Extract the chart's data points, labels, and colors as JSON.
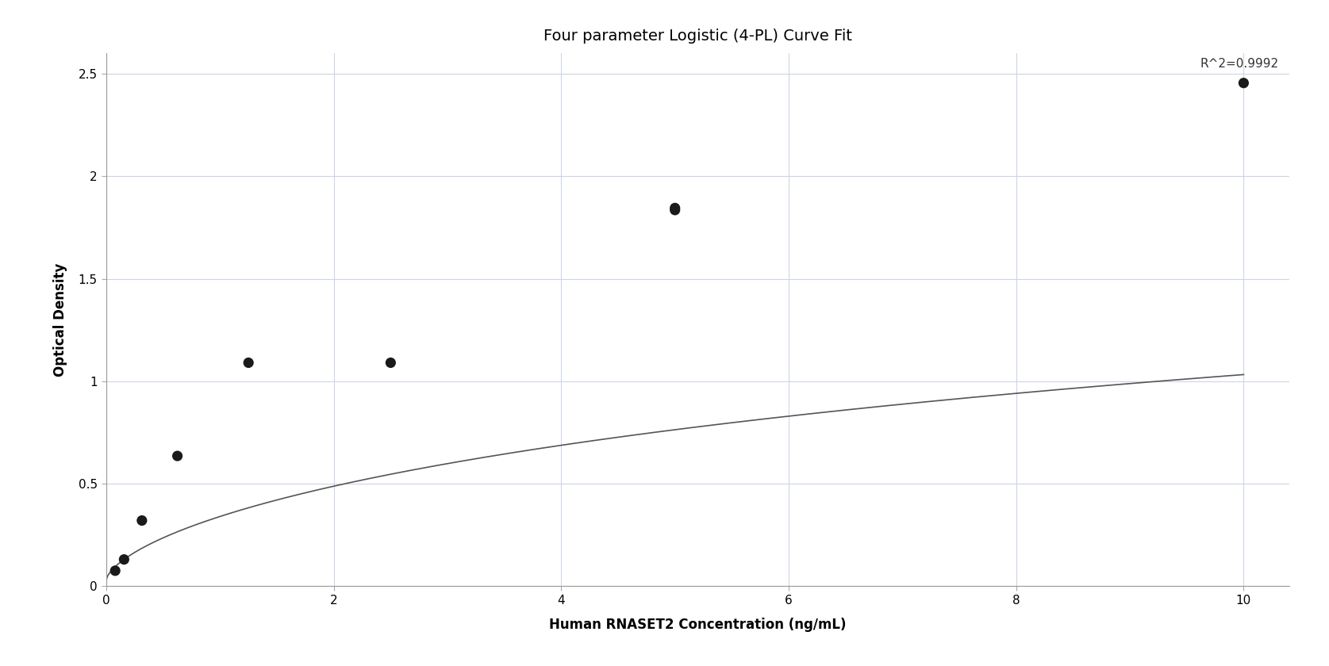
{
  "title": "Four parameter Logistic (4-PL) Curve Fit",
  "xlabel": "Human RNASET2 Concentration (ng/mL)",
  "ylabel": "Optical Density",
  "r_squared": "R^2=0.9992",
  "data_x": [
    0.078,
    0.156,
    0.313,
    0.625,
    1.25,
    2.5,
    5.0,
    5.0,
    10.0
  ],
  "data_y": [
    0.075,
    0.13,
    0.32,
    0.635,
    1.09,
    1.09,
    1.835,
    1.845,
    2.455
  ],
  "xlim": [
    -0.05,
    10.5
  ],
  "ylim": [
    -0.02,
    2.6
  ],
  "xticks": [
    0,
    2,
    4,
    6,
    8,
    10
  ],
  "yticks": [
    0,
    0.5,
    1.0,
    1.5,
    2.0,
    2.5
  ],
  "background_color": "#ffffff",
  "grid_color": "#ccd5e8",
  "curve_color": "#555555",
  "point_color": "#1a1a1a",
  "point_size": 90,
  "title_fontsize": 14,
  "label_fontsize": 12,
  "tick_fontsize": 11,
  "annotation_fontsize": 11
}
